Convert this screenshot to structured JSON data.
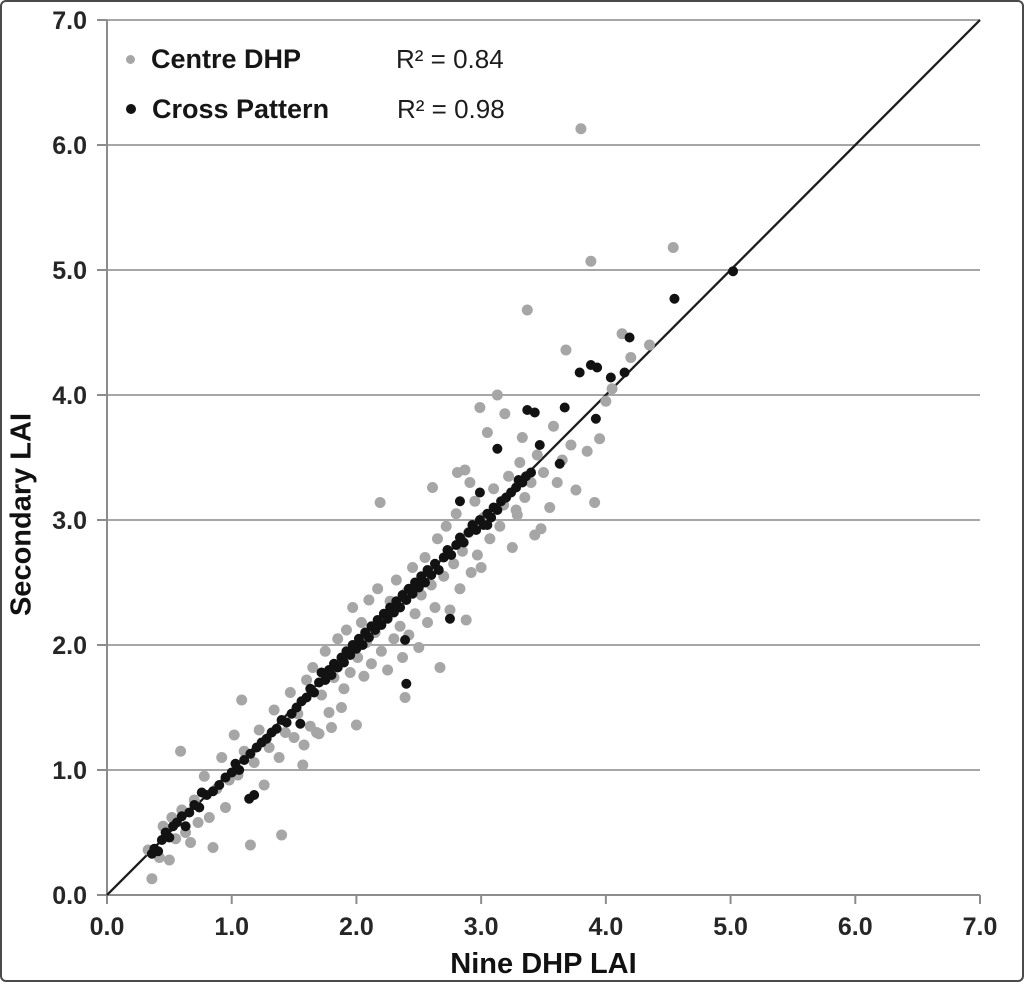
{
  "figure": {
    "background": "#ffffff",
    "border_color": "#4a4a4a"
  },
  "chart_data": {
    "type": "scatter",
    "title": "",
    "xlabel": "Nine DHP LAI",
    "ylabel": "Secondary LAI",
    "xlim": [
      0,
      7
    ],
    "ylim": [
      0,
      7
    ],
    "xticks": [
      "0.0",
      "1.0",
      "2.0",
      "3.0",
      "4.0",
      "5.0",
      "6.0",
      "7.0"
    ],
    "yticks": [
      "0.0",
      "1.0",
      "2.0",
      "3.0",
      "4.0",
      "5.0",
      "6.0",
      "7.0"
    ],
    "grid": "horizontal",
    "grid_color": "#a6a6a6",
    "axis_color": "#8c8c8c",
    "identity_line": true,
    "identity_line_color": "#1c1c1c",
    "legend_position": "top-left",
    "series": [
      {
        "name": "Centre DHP",
        "r2_label": "R² = 0.84",
        "color": "#a6a6a6",
        "radius": 5.5,
        "points": [
          [
            0.36,
            0.13
          ],
          [
            0.33,
            0.36
          ],
          [
            0.42,
            0.3
          ],
          [
            0.45,
            0.55
          ],
          [
            0.5,
            0.28
          ],
          [
            0.52,
            0.62
          ],
          [
            0.55,
            0.45
          ],
          [
            0.59,
            1.15
          ],
          [
            0.6,
            0.68
          ],
          [
            0.63,
            0.5
          ],
          [
            0.67,
            0.42
          ],
          [
            0.7,
            0.76
          ],
          [
            0.73,
            0.58
          ],
          [
            0.78,
            0.95
          ],
          [
            0.82,
            0.62
          ],
          [
            0.85,
            0.38
          ],
          [
            0.88,
            0.85
          ],
          [
            0.92,
            1.1
          ],
          [
            0.95,
            0.7
          ],
          [
            0.98,
            0.92
          ],
          [
            1.02,
            1.28
          ],
          [
            1.05,
            0.96
          ],
          [
            1.08,
            1.56
          ],
          [
            1.1,
            1.15
          ],
          [
            1.15,
            0.4
          ],
          [
            1.18,
            1.06
          ],
          [
            1.22,
            1.32
          ],
          [
            1.26,
            0.88
          ],
          [
            1.3,
            1.18
          ],
          [
            1.34,
            1.48
          ],
          [
            1.38,
            1.1
          ],
          [
            1.4,
            0.48
          ],
          [
            1.43,
            1.3
          ],
          [
            1.47,
            1.62
          ],
          [
            1.5,
            1.26
          ],
          [
            1.53,
            1.45
          ],
          [
            1.57,
            1.04
          ],
          [
            1.58,
            1.2
          ],
          [
            1.6,
            1.72
          ],
          [
            1.63,
            1.35
          ],
          [
            1.65,
            1.82
          ],
          [
            1.68,
            1.3
          ],
          [
            1.7,
            1.29
          ],
          [
            1.72,
            1.6
          ],
          [
            1.75,
            1.95
          ],
          [
            1.78,
            1.46
          ],
          [
            1.8,
            1.34
          ],
          [
            1.82,
            1.74
          ],
          [
            1.85,
            2.05
          ],
          [
            1.88,
            1.5
          ],
          [
            1.9,
            1.65
          ],
          [
            1.92,
            2.12
          ],
          [
            1.95,
            1.78
          ],
          [
            1.97,
            2.3
          ],
          [
            2.0,
            1.36
          ],
          [
            2.01,
            1.9
          ],
          [
            2.04,
            2.18
          ],
          [
            2.06,
            1.75
          ],
          [
            2.08,
            2.02
          ],
          [
            2.1,
            2.36
          ],
          [
            2.12,
            1.85
          ],
          [
            2.15,
            2.1
          ],
          [
            2.17,
            2.45
          ],
          [
            2.19,
            3.14
          ],
          [
            2.2,
            1.95
          ],
          [
            2.22,
            2.22
          ],
          [
            2.25,
            1.8
          ],
          [
            2.27,
            2.35
          ],
          [
            2.3,
            2.05
          ],
          [
            2.32,
            2.52
          ],
          [
            2.35,
            2.15
          ],
          [
            2.37,
            1.9
          ],
          [
            2.39,
            1.58
          ],
          [
            2.4,
            2.42
          ],
          [
            2.42,
            2.08
          ],
          [
            2.45,
            2.62
          ],
          [
            2.47,
            2.25
          ],
          [
            2.5,
            1.98
          ],
          [
            2.52,
            2.4
          ],
          [
            2.55,
            2.7
          ],
          [
            2.57,
            2.18
          ],
          [
            2.6,
            2.48
          ],
          [
            2.61,
            3.26
          ],
          [
            2.63,
            2.3
          ],
          [
            2.65,
            2.85
          ],
          [
            2.67,
            1.82
          ],
          [
            2.7,
            2.55
          ],
          [
            2.72,
            2.95
          ],
          [
            2.75,
            2.28
          ],
          [
            2.78,
            2.65
          ],
          [
            2.8,
            3.05
          ],
          [
            2.81,
            3.38
          ],
          [
            2.83,
            2.45
          ],
          [
            2.85,
            2.75
          ],
          [
            2.87,
            3.4
          ],
          [
            2.88,
            2.2
          ],
          [
            2.9,
            2.9
          ],
          [
            2.91,
            3.3
          ],
          [
            2.92,
            2.58
          ],
          [
            2.95,
            3.15
          ],
          [
            2.97,
            2.72
          ],
          [
            2.99,
            3.9
          ],
          [
            3.0,
            2.62
          ],
          [
            3.02,
            3.02
          ],
          [
            3.05,
            3.7
          ],
          [
            3.07,
            2.85
          ],
          [
            3.1,
            3.25
          ],
          [
            3.13,
            4.0
          ],
          [
            3.15,
            2.95
          ],
          [
            3.18,
            3.12
          ],
          [
            3.19,
            3.85
          ],
          [
            3.22,
            3.35
          ],
          [
            3.25,
            2.78
          ],
          [
            3.28,
            3.08
          ],
          [
            3.29,
            3.04
          ],
          [
            3.31,
            3.46
          ],
          [
            3.33,
            3.66
          ],
          [
            3.35,
            3.18
          ],
          [
            3.37,
            4.68
          ],
          [
            3.4,
            3.3
          ],
          [
            3.43,
            2.88
          ],
          [
            3.45,
            3.52
          ],
          [
            3.48,
            2.93
          ],
          [
            3.5,
            3.38
          ],
          [
            3.55,
            3.1
          ],
          [
            3.58,
            3.75
          ],
          [
            3.61,
            3.3
          ],
          [
            3.65,
            3.48
          ],
          [
            3.68,
            4.36
          ],
          [
            3.72,
            3.6
          ],
          [
            3.76,
            3.24
          ],
          [
            3.8,
            6.13
          ],
          [
            3.85,
            3.55
          ],
          [
            3.88,
            5.07
          ],
          [
            3.91,
            3.14
          ],
          [
            3.95,
            3.65
          ],
          [
            4.0,
            3.95
          ],
          [
            4.05,
            4.05
          ],
          [
            4.13,
            4.49
          ],
          [
            4.2,
            4.3
          ],
          [
            4.35,
            4.4
          ],
          [
            4.54,
            5.18
          ]
        ]
      },
      {
        "name": "Cross Pattern",
        "r2_label": "R² = 0.98",
        "color": "#121212",
        "radius": 5,
        "points": [
          [
            0.36,
            0.33
          ],
          [
            0.38,
            0.37
          ],
          [
            0.41,
            0.35
          ],
          [
            0.44,
            0.44
          ],
          [
            0.47,
            0.5
          ],
          [
            0.5,
            0.46
          ],
          [
            0.53,
            0.55
          ],
          [
            0.56,
            0.58
          ],
          [
            0.6,
            0.63
          ],
          [
            0.63,
            0.55
          ],
          [
            0.66,
            0.66
          ],
          [
            0.7,
            0.72
          ],
          [
            0.74,
            0.7
          ],
          [
            0.76,
            0.82
          ],
          [
            0.8,
            0.8
          ],
          [
            0.85,
            0.83
          ],
          [
            0.9,
            0.88
          ],
          [
            0.95,
            0.94
          ],
          [
            1.0,
            0.98
          ],
          [
            1.03,
            1.05
          ],
          [
            1.06,
            1.0
          ],
          [
            1.1,
            1.08
          ],
          [
            1.14,
            0.77
          ],
          [
            1.18,
            0.8
          ],
          [
            1.15,
            1.13
          ],
          [
            1.2,
            1.18
          ],
          [
            1.24,
            1.22
          ],
          [
            1.28,
            1.25
          ],
          [
            1.32,
            1.3
          ],
          [
            1.36,
            1.33
          ],
          [
            1.4,
            1.4
          ],
          [
            1.44,
            1.38
          ],
          [
            1.48,
            1.45
          ],
          [
            1.52,
            1.5
          ],
          [
            1.55,
            1.37
          ],
          [
            1.56,
            1.55
          ],
          [
            1.6,
            1.58
          ],
          [
            1.63,
            1.65
          ],
          [
            1.66,
            1.62
          ],
          [
            1.7,
            1.7
          ],
          [
            1.72,
            1.78
          ],
          [
            1.75,
            1.72
          ],
          [
            1.78,
            1.8
          ],
          [
            1.8,
            1.76
          ],
          [
            1.82,
            1.85
          ],
          [
            1.85,
            1.82
          ],
          [
            1.88,
            1.9
          ],
          [
            1.9,
            1.86
          ],
          [
            1.92,
            1.95
          ],
          [
            1.95,
            1.92
          ],
          [
            1.97,
            2.0
          ],
          [
            2.0,
            1.97
          ],
          [
            2.02,
            2.05
          ],
          [
            2.05,
            2.0
          ],
          [
            2.07,
            2.1
          ],
          [
            2.1,
            2.06
          ],
          [
            2.12,
            2.15
          ],
          [
            2.15,
            2.12
          ],
          [
            2.17,
            2.2
          ],
          [
            2.2,
            2.16
          ],
          [
            2.22,
            2.25
          ],
          [
            2.25,
            2.21
          ],
          [
            2.27,
            2.3
          ],
          [
            2.3,
            2.26
          ],
          [
            2.32,
            2.35
          ],
          [
            2.35,
            2.3
          ],
          [
            2.37,
            2.4
          ],
          [
            2.39,
            2.04
          ],
          [
            2.4,
            1.69
          ],
          [
            2.4,
            2.36
          ],
          [
            2.42,
            2.45
          ],
          [
            2.45,
            2.41
          ],
          [
            2.47,
            2.5
          ],
          [
            2.5,
            2.46
          ],
          [
            2.52,
            2.55
          ],
          [
            2.55,
            2.5
          ],
          [
            2.57,
            2.6
          ],
          [
            2.6,
            2.56
          ],
          [
            2.63,
            2.65
          ],
          [
            2.66,
            2.6
          ],
          [
            2.7,
            2.7
          ],
          [
            2.73,
            2.76
          ],
          [
            2.75,
            2.21
          ],
          [
            2.76,
            2.72
          ],
          [
            2.8,
            2.8
          ],
          [
            2.83,
            2.86
          ],
          [
            2.83,
            3.15
          ],
          [
            2.86,
            2.82
          ],
          [
            2.9,
            2.9
          ],
          [
            2.93,
            2.96
          ],
          [
            2.96,
            2.92
          ],
          [
            2.99,
            3.0
          ],
          [
            2.99,
            3.22
          ],
          [
            3.02,
            2.96
          ],
          [
            3.05,
            2.96
          ],
          [
            3.05,
            3.05
          ],
          [
            3.08,
            3.02
          ],
          [
            3.1,
            3.1
          ],
          [
            3.13,
            3.08
          ],
          [
            3.13,
            3.57
          ],
          [
            3.16,
            3.15
          ],
          [
            3.2,
            3.18
          ],
          [
            3.24,
            3.22
          ],
          [
            3.28,
            3.26
          ],
          [
            3.3,
            3.32
          ],
          [
            3.33,
            3.3
          ],
          [
            3.36,
            3.35
          ],
          [
            3.37,
            3.88
          ],
          [
            3.4,
            3.38
          ],
          [
            3.43,
            3.86
          ],
          [
            3.47,
            3.6
          ],
          [
            3.63,
            3.45
          ],
          [
            3.67,
            3.9
          ],
          [
            3.79,
            4.18
          ],
          [
            3.88,
            4.24
          ],
          [
            3.93,
            4.22
          ],
          [
            4.04,
            4.14
          ],
          [
            4.15,
            4.18
          ],
          [
            4.19,
            4.46
          ],
          [
            3.92,
            3.81
          ],
          [
            4.55,
            4.77
          ],
          [
            5.02,
            4.99
          ]
        ]
      }
    ]
  }
}
